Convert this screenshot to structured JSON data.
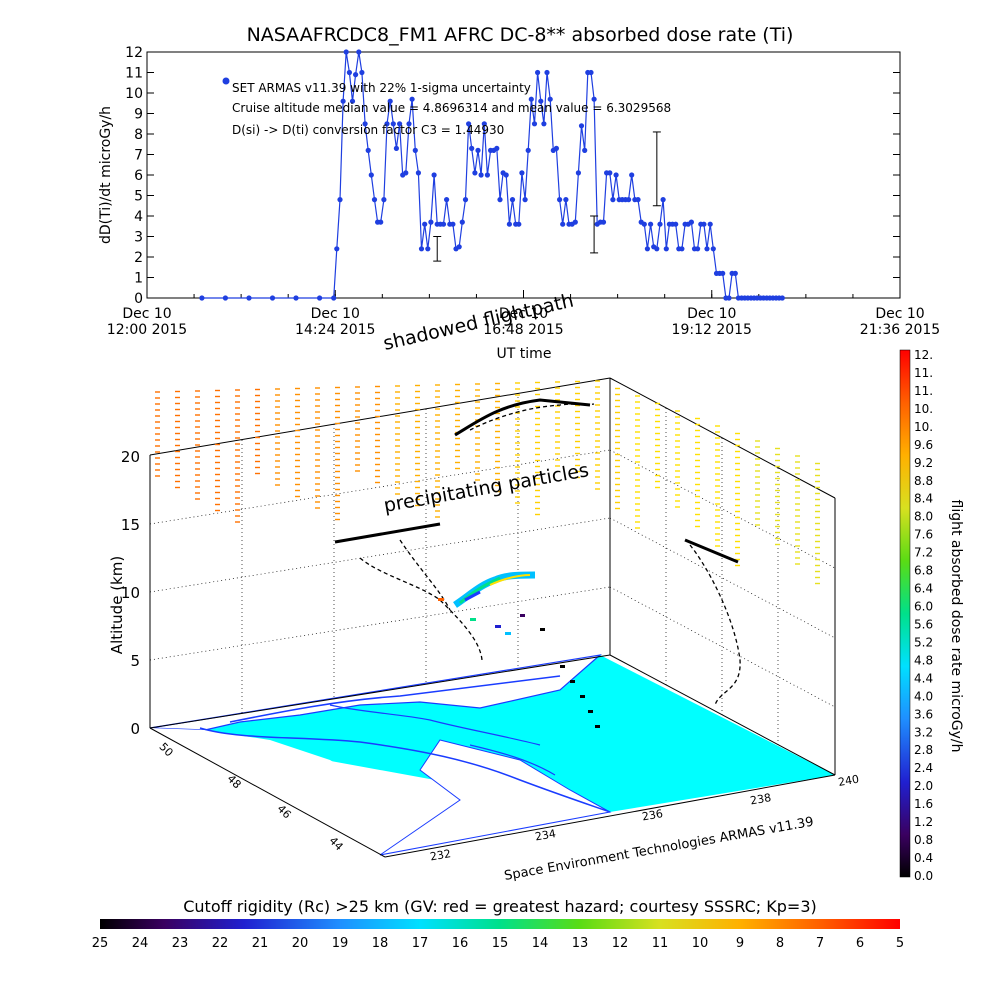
{
  "chart_data": [
    {
      "type": "line",
      "title": "NASAAFRCDC8_FM1 AFRC DC-8** absorbed dose rate (Ti)",
      "ylabel": "dD(Ti)/dt microGy/h",
      "xlabel": "UT time",
      "ylim": [
        0,
        12
      ],
      "xlim_hours": [
        12.0,
        21.6
      ],
      "yticks": [
        "0",
        "1",
        "2",
        "3",
        "4",
        "5",
        "6",
        "7",
        "8",
        "9",
        "10",
        "11",
        "12"
      ],
      "xticks": [
        {
          "t": 12.0,
          "line1": "Dec 10",
          "line2": "12:00 2015"
        },
        {
          "t": 14.4,
          "line1": "Dec 10",
          "line2": "14:24 2015"
        },
        {
          "t": 16.8,
          "line1": "Dec 10",
          "line2": "16:48 2015"
        },
        {
          "t": 19.2,
          "line1": "Dec 10",
          "line2": "19:12 2015"
        },
        {
          "t": 21.6,
          "line1": "Dec 10",
          "line2": "21:36 2015"
        }
      ],
      "annotations": [
        "SET ARMAS v11.39 with 22% 1-sigma uncertainty",
        "Cruise altitude median value = 4.8696314 and mean value = 6.3029568",
        "D(si) -> D(ti) conversion factor C3 = 1.44930"
      ],
      "legend_marker_color": "#1f3fe0",
      "series": [
        {
          "color": "#1f3fe0",
          "x": [
            12.7,
            13.0,
            13.3,
            13.6,
            13.9,
            14.2,
            14.38,
            14.42,
            14.46,
            14.5,
            14.54,
            14.58,
            14.62,
            14.66,
            14.7,
            14.74,
            14.78,
            14.82,
            14.86,
            14.9,
            14.94,
            14.98,
            15.02,
            15.06,
            15.1,
            15.14,
            15.18,
            15.22,
            15.26,
            15.3,
            15.34,
            15.38,
            15.42,
            15.46,
            15.5,
            15.54,
            15.58,
            15.62,
            15.66,
            15.7,
            15.74,
            15.78,
            15.82,
            15.86,
            15.9,
            15.94,
            15.98,
            16.02,
            16.06,
            16.1,
            16.14,
            16.18,
            16.22,
            16.26,
            16.3,
            16.34,
            16.38,
            16.42,
            16.46,
            16.5,
            16.54,
            16.58,
            16.62,
            16.66,
            16.7,
            16.74,
            16.78,
            16.82,
            16.86,
            16.9,
            16.94,
            16.98,
            17.02,
            17.06,
            17.1,
            17.14,
            17.18,
            17.22,
            17.26,
            17.3,
            17.34,
            17.38,
            17.42,
            17.46,
            17.5,
            17.54,
            17.58,
            17.62,
            17.66,
            17.7,
            17.74,
            17.78,
            17.82,
            17.86,
            17.9,
            17.94,
            17.98,
            18.02,
            18.06,
            18.1,
            18.14,
            18.18,
            18.22,
            18.26,
            18.3,
            18.34,
            18.38,
            18.42,
            18.46,
            18.5,
            18.54,
            18.58,
            18.62,
            18.66,
            18.7,
            18.74,
            18.78,
            18.82,
            18.86,
            18.9,
            18.94,
            18.98,
            19.02,
            19.06,
            19.1,
            19.14,
            19.18,
            19.22,
            19.26,
            19.3,
            19.34,
            19.38,
            19.42,
            19.46,
            19.5,
            19.54,
            19.58,
            19.62,
            19.66,
            19.7,
            19.74,
            19.78,
            19.82,
            19.86,
            19.9,
            19.94,
            19.98,
            20.02,
            20.06,
            20.1
          ],
          "y": [
            0,
            0,
            0,
            0,
            0,
            0,
            0,
            2.4,
            4.8,
            9.6,
            12,
            11,
            9.6,
            10.9,
            12,
            11,
            8.5,
            7.2,
            6,
            4.8,
            3.7,
            3.7,
            4.8,
            8.5,
            9.6,
            8.5,
            7.3,
            8.5,
            6,
            6.1,
            8.5,
            9.7,
            7.2,
            6.1,
            2.4,
            3.6,
            2.4,
            3.7,
            6,
            3.6,
            3.6,
            3.6,
            4.8,
            3.6,
            3.6,
            2.4,
            2.5,
            3.7,
            4.8,
            8.5,
            7.3,
            6.1,
            7.2,
            6,
            8.5,
            6,
            7.2,
            7.2,
            7.3,
            4.8,
            6.1,
            6,
            3.6,
            4.8,
            3.6,
            3.6,
            6.1,
            4.8,
            7.2,
            9.7,
            8.5,
            11,
            9.6,
            8.5,
            11,
            9.7,
            7.2,
            7.3,
            4.8,
            3.6,
            4.8,
            3.6,
            3.6,
            3.7,
            6.1,
            8.4,
            7.2,
            11,
            11,
            9.7,
            3.6,
            3.7,
            3.7,
            6.1,
            6.1,
            4.8,
            6,
            4.8,
            4.8,
            4.8,
            4.8,
            6,
            4.8,
            4.8,
            3.7,
            3.6,
            2.4,
            3.6,
            2.5,
            2.4,
            3.6,
            4.8,
            2.4,
            3.6,
            3.6,
            3.6,
            2.4,
            2.4,
            3.6,
            3.6,
            3.7,
            2.4,
            2.4,
            3.6,
            3.6,
            2.4,
            3.6,
            2.4,
            1.2,
            1.2,
            1.2,
            0,
            0,
            1.2,
            1.2,
            0,
            0,
            0,
            0,
            0,
            0,
            0,
            0,
            0,
            0,
            0,
            0,
            0,
            0,
            0
          ]
        }
      ],
      "error_bars": [
        {
          "x": 15.7,
          "y": 2.4,
          "low": 1.8,
          "high": 3.0
        },
        {
          "x": 17.7,
          "y": 3.1,
          "low": 2.2,
          "high": 4.0
        },
        {
          "x": 18.5,
          "y": 6.3,
          "low": 4.5,
          "high": 8.1
        }
      ]
    },
    {
      "type": "scatter",
      "view": "3d",
      "zlabel": "Altitude (km)",
      "zticks": [
        "0",
        "5",
        "10",
        "15",
        "20"
      ],
      "lat_ticks": [
        "50",
        "48",
        "46",
        "44"
      ],
      "lon_ticks": [
        "232",
        "234",
        "236",
        "238",
        "240"
      ],
      "floor_label": "Space Environment Technologies ARMAS v11.39",
      "annotation_top": "shadowed flightpath",
      "annotation_mid": "precipitating particles",
      "colorbar_right": {
        "label": "flight absorbed dose rate microGy/h",
        "ticks": [
          "12.",
          "11.",
          "11.",
          "10.",
          "10.",
          "9.6",
          "9.2",
          "8.8",
          "8.4",
          "8.0",
          "7.6",
          "7.2",
          "6.8",
          "6.4",
          "6.0",
          "5.6",
          "5.2",
          "4.8",
          "4.4",
          "4.0",
          "3.6",
          "3.2",
          "2.8",
          "2.4",
          "2.0",
          "1.6",
          "1.2",
          "0.8",
          "0.4",
          "0.0"
        ]
      },
      "colorbar_bottom": {
        "label": "Cutoff rigidity (Rc) >25 km (GV: red = greatest hazard; courtesy SSSRC; Kp=3)",
        "ticks": [
          "25",
          "24",
          "23",
          "22",
          "21",
          "20",
          "19",
          "18",
          "17",
          "16",
          "15",
          "14",
          "13",
          "12",
          "11",
          "10",
          "9",
          "8",
          "7",
          "6",
          "5"
        ]
      },
      "sea_color": "#00ffff",
      "land_color": "#ffffff"
    }
  ]
}
